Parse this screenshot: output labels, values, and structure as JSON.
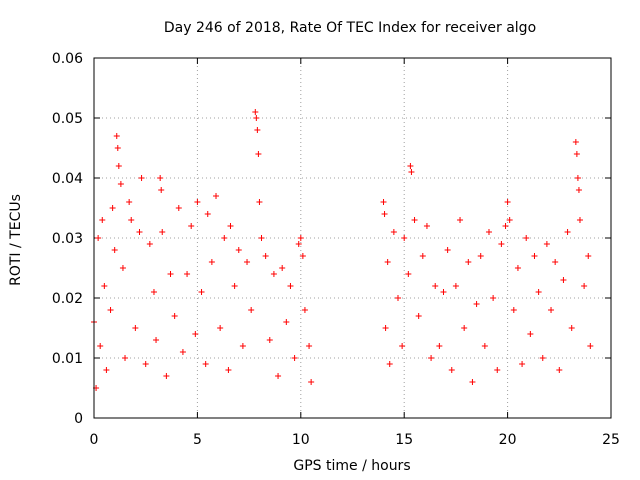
{
  "chart_data": {
    "type": "scatter",
    "title": "Day 246 of 2018, Rate Of TEC Index for receiver algo",
    "xlabel": "GPS time / hours",
    "ylabel": "ROTI / TECUs",
    "xlim": [
      0,
      25
    ],
    "ylim": [
      0,
      0.06
    ],
    "x_ticks": [
      "0",
      "5",
      "10",
      "15",
      "20",
      "25"
    ],
    "y_ticks": [
      "0",
      "0.01",
      "0.02",
      "0.03",
      "0.04",
      "0.05",
      "0.06"
    ],
    "grid": true,
    "marker": "plus",
    "color": "#ff0000",
    "data_gap_hours": [
      10.5,
      14.0
    ],
    "points": [
      [
        0.0,
        0.016
      ],
      [
        0.1,
        0.005
      ],
      [
        0.2,
        0.03
      ],
      [
        0.3,
        0.012
      ],
      [
        0.4,
        0.033
      ],
      [
        0.5,
        0.022
      ],
      [
        0.6,
        0.008
      ],
      [
        0.8,
        0.018
      ],
      [
        0.9,
        0.035
      ],
      [
        1.0,
        0.028
      ],
      [
        1.1,
        0.047
      ],
      [
        1.15,
        0.045
      ],
      [
        1.2,
        0.042
      ],
      [
        1.3,
        0.039
      ],
      [
        1.4,
        0.025
      ],
      [
        1.5,
        0.01
      ],
      [
        1.7,
        0.036
      ],
      [
        1.8,
        0.033
      ],
      [
        2.0,
        0.015
      ],
      [
        2.2,
        0.031
      ],
      [
        2.3,
        0.04
      ],
      [
        2.5,
        0.009
      ],
      [
        2.7,
        0.029
      ],
      [
        2.9,
        0.021
      ],
      [
        3.0,
        0.013
      ],
      [
        3.2,
        0.04
      ],
      [
        3.25,
        0.038
      ],
      [
        3.3,
        0.031
      ],
      [
        3.5,
        0.007
      ],
      [
        3.7,
        0.024
      ],
      [
        3.9,
        0.017
      ],
      [
        4.1,
        0.035
      ],
      [
        4.3,
        0.011
      ],
      [
        4.5,
        0.024
      ],
      [
        4.7,
        0.032
      ],
      [
        4.9,
        0.014
      ],
      [
        5.0,
        0.036
      ],
      [
        5.2,
        0.021
      ],
      [
        5.4,
        0.009
      ],
      [
        5.5,
        0.034
      ],
      [
        5.7,
        0.026
      ],
      [
        5.9,
        0.037
      ],
      [
        6.1,
        0.015
      ],
      [
        6.3,
        0.03
      ],
      [
        6.5,
        0.008
      ],
      [
        6.6,
        0.032
      ],
      [
        6.8,
        0.022
      ],
      [
        7.0,
        0.028
      ],
      [
        7.2,
        0.012
      ],
      [
        7.4,
        0.026
      ],
      [
        7.6,
        0.018
      ],
      [
        7.8,
        0.051
      ],
      [
        7.85,
        0.05
      ],
      [
        7.9,
        0.048
      ],
      [
        7.95,
        0.044
      ],
      [
        8.0,
        0.036
      ],
      [
        8.1,
        0.03
      ],
      [
        8.3,
        0.027
      ],
      [
        8.5,
        0.013
      ],
      [
        8.7,
        0.024
      ],
      [
        8.9,
        0.007
      ],
      [
        9.1,
        0.025
      ],
      [
        9.3,
        0.016
      ],
      [
        9.5,
        0.022
      ],
      [
        9.7,
        0.01
      ],
      [
        9.9,
        0.029
      ],
      [
        10.0,
        0.03
      ],
      [
        10.1,
        0.027
      ],
      [
        10.2,
        0.018
      ],
      [
        10.4,
        0.012
      ],
      [
        10.5,
        0.006
      ],
      [
        14.0,
        0.036
      ],
      [
        14.05,
        0.034
      ],
      [
        14.1,
        0.015
      ],
      [
        14.2,
        0.026
      ],
      [
        14.3,
        0.009
      ],
      [
        14.5,
        0.031
      ],
      [
        14.7,
        0.02
      ],
      [
        14.9,
        0.012
      ],
      [
        15.0,
        0.03
      ],
      [
        15.2,
        0.024
      ],
      [
        15.3,
        0.042
      ],
      [
        15.35,
        0.041
      ],
      [
        15.5,
        0.033
      ],
      [
        15.7,
        0.017
      ],
      [
        15.9,
        0.027
      ],
      [
        16.1,
        0.032
      ],
      [
        16.3,
        0.01
      ],
      [
        16.5,
        0.022
      ],
      [
        16.7,
        0.012
      ],
      [
        16.9,
        0.021
      ],
      [
        17.1,
        0.028
      ],
      [
        17.3,
        0.008
      ],
      [
        17.5,
        0.022
      ],
      [
        17.7,
        0.033
      ],
      [
        17.9,
        0.015
      ],
      [
        18.1,
        0.026
      ],
      [
        18.3,
        0.006
      ],
      [
        18.5,
        0.019
      ],
      [
        18.7,
        0.027
      ],
      [
        18.9,
        0.012
      ],
      [
        19.1,
        0.031
      ],
      [
        19.3,
        0.02
      ],
      [
        19.5,
        0.008
      ],
      [
        19.7,
        0.029
      ],
      [
        19.9,
        0.032
      ],
      [
        20.0,
        0.036
      ],
      [
        20.1,
        0.033
      ],
      [
        20.3,
        0.018
      ],
      [
        20.5,
        0.025
      ],
      [
        20.7,
        0.009
      ],
      [
        20.9,
        0.03
      ],
      [
        21.1,
        0.014
      ],
      [
        21.3,
        0.027
      ],
      [
        21.5,
        0.021
      ],
      [
        21.7,
        0.01
      ],
      [
        21.9,
        0.029
      ],
      [
        22.1,
        0.018
      ],
      [
        22.3,
        0.026
      ],
      [
        22.5,
        0.008
      ],
      [
        22.7,
        0.023
      ],
      [
        22.9,
        0.031
      ],
      [
        23.1,
        0.015
      ],
      [
        23.3,
        0.046
      ],
      [
        23.35,
        0.044
      ],
      [
        23.4,
        0.04
      ],
      [
        23.45,
        0.038
      ],
      [
        23.5,
        0.033
      ],
      [
        23.7,
        0.022
      ],
      [
        23.9,
        0.027
      ],
      [
        24.0,
        0.012
      ]
    ]
  }
}
